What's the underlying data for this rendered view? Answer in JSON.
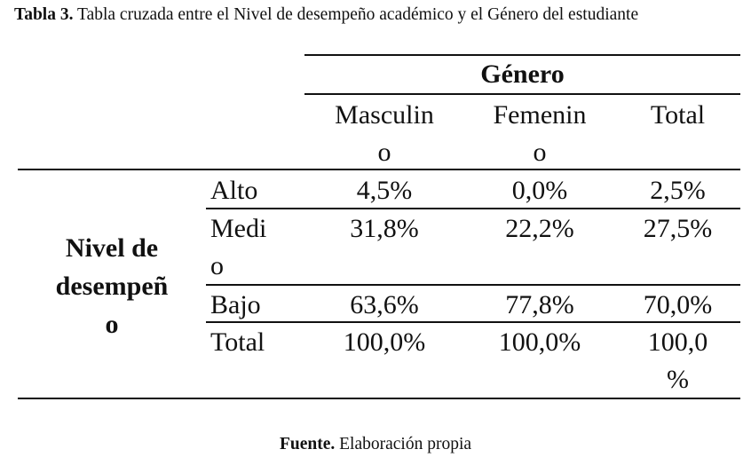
{
  "caption": {
    "label": "Tabla 3.",
    "text": "Tabla cruzada entre el Nivel de desempeño académico y el Género del estudiante"
  },
  "table": {
    "group_header": "Género",
    "columns": [
      {
        "line1": "Masculin",
        "line2": "o"
      },
      {
        "line1": "Femenin",
        "line2": "o"
      },
      {
        "line1": "Total",
        "line2": ""
      }
    ],
    "row_group_label": {
      "line1": "Nivel de",
      "line2": "desempeñ",
      "line3": "o"
    },
    "rows": [
      {
        "label1": "Alto",
        "label2": "",
        "values": [
          "4,5%",
          "0,0%",
          "2,5%"
        ],
        "total_line2": ""
      },
      {
        "label1": "Medi",
        "label2": "o",
        "values": [
          "31,8%",
          "22,2%",
          "27,5%"
        ],
        "total_line2": ""
      },
      {
        "label1": "Bajo",
        "label2": "",
        "values": [
          "63,6%",
          "77,8%",
          "70,0%"
        ],
        "total_line2": ""
      },
      {
        "label1": "Total",
        "label2": "",
        "values": [
          "100,0%",
          "100,0%",
          "100,0"
        ],
        "total_line2": "%"
      }
    ]
  },
  "source": {
    "label": "Fuente.",
    "text": "Elaboración propia"
  }
}
